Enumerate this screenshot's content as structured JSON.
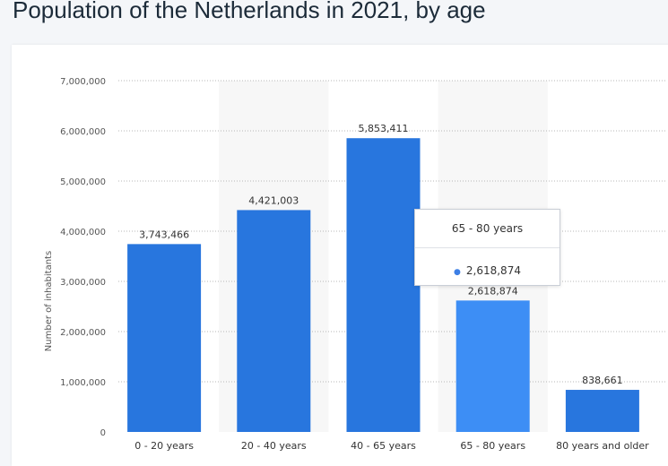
{
  "page": {
    "title": "Population of the Netherlands in 2021, by age"
  },
  "tooltip": {
    "title": "65 - 80 years",
    "value": "2,618,874"
  },
  "colors": {
    "bar": "#2876de",
    "bar_highlight": "#3d8ef5",
    "axis_text": "#555555",
    "grid": "#b7b7b7",
    "band": "#f7f7f7"
  },
  "chart_data": {
    "type": "bar",
    "title": "",
    "xlabel": "",
    "ylabel": "Number of inhabitants",
    "categories": [
      "0 - 20 years",
      "20 - 40 years",
      "40 - 65 years",
      "65 - 80 years",
      "80 years and older"
    ],
    "values": [
      3743466,
      4421003,
      5853411,
      2618874,
      838661
    ],
    "value_labels": [
      "3,743,466",
      "4,421,003",
      "5,853,411",
      "2,618,874",
      "838,661"
    ],
    "ylim": [
      0,
      7000000
    ],
    "yticks": [
      0,
      1000000,
      2000000,
      3000000,
      4000000,
      5000000,
      6000000,
      7000000
    ],
    "ytick_labels": [
      "0",
      "1,000,000",
      "2,000,000",
      "3,000,000",
      "4,000,000",
      "5,000,000",
      "6,000,000",
      "7,000,000"
    ],
    "highlighted_category": "65 - 80 years",
    "grid": true,
    "legend": "none"
  }
}
